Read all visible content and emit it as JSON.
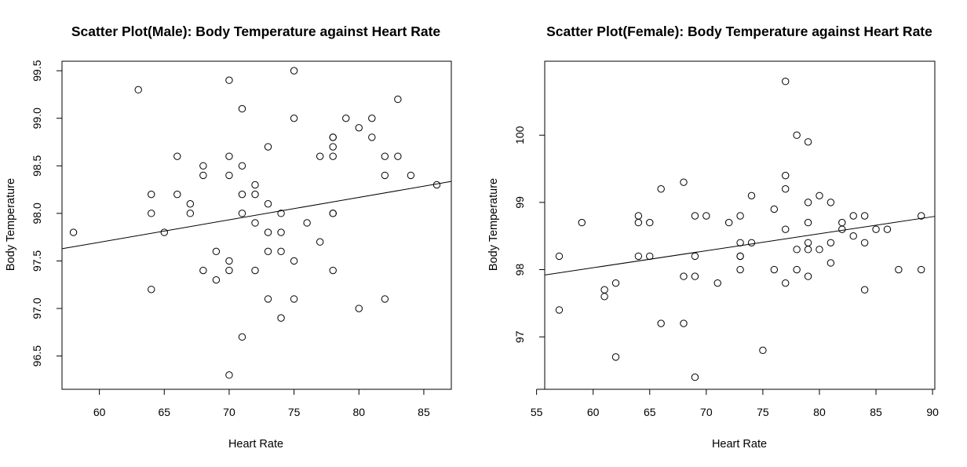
{
  "chart_data": [
    {
      "type": "scatter",
      "title": "Scatter Plot(Male): Body Temperature against Heart Rate",
      "xlabel": "Heart Rate",
      "ylabel": "Body Temperature",
      "xlim": [
        57.12,
        87.12
      ],
      "ylim": [
        96.15,
        99.6
      ],
      "xticks": [
        60,
        65,
        70,
        75,
        80,
        85
      ],
      "yticks": [
        96.5,
        97.0,
        97.5,
        98.0,
        98.5,
        99.0,
        99.5
      ],
      "ytick_labels": [
        "96.5",
        "97.0",
        "97.5",
        "98.0",
        "98.5",
        "99.0",
        "99.5"
      ],
      "grid": false,
      "legend": "none",
      "marker": "open-circle",
      "points": [
        [
          58,
          97.8
        ],
        [
          63,
          99.3
        ],
        [
          64,
          98.2
        ],
        [
          64,
          98.0
        ],
        [
          64,
          97.2
        ],
        [
          65,
          97.8
        ],
        [
          66,
          98.6
        ],
        [
          66,
          98.2
        ],
        [
          67,
          98.1
        ],
        [
          67,
          98.0
        ],
        [
          68,
          98.5
        ],
        [
          68,
          98.4
        ],
        [
          68,
          97.4
        ],
        [
          69,
          97.6
        ],
        [
          69,
          97.3
        ],
        [
          70,
          99.4
        ],
        [
          70,
          98.6
        ],
        [
          70,
          98.4
        ],
        [
          70,
          97.5
        ],
        [
          70,
          97.4
        ],
        [
          70,
          96.3
        ],
        [
          71,
          99.1
        ],
        [
          71,
          98.5
        ],
        [
          71,
          98.2
        ],
        [
          71,
          98.0
        ],
        [
          71,
          96.7
        ],
        [
          72,
          98.3
        ],
        [
          72,
          98.2
        ],
        [
          72,
          97.9
        ],
        [
          72,
          97.4
        ],
        [
          73,
          98.7
        ],
        [
          73,
          98.1
        ],
        [
          73,
          97.8
        ],
        [
          73,
          97.6
        ],
        [
          73,
          97.1
        ],
        [
          74,
          98.0
        ],
        [
          74,
          97.8
        ],
        [
          74,
          97.6
        ],
        [
          74,
          96.9
        ],
        [
          75,
          99.5
        ],
        [
          75,
          99.0
        ],
        [
          75,
          97.5
        ],
        [
          75,
          97.1
        ],
        [
          76,
          97.9
        ],
        [
          77,
          98.6
        ],
        [
          77,
          97.7
        ],
        [
          78,
          98.8
        ],
        [
          78,
          98.8
        ],
        [
          78,
          98.7
        ],
        [
          78,
          98.6
        ],
        [
          78,
          98.0
        ],
        [
          78,
          98.0
        ],
        [
          78,
          97.4
        ],
        [
          79,
          99.0
        ],
        [
          80,
          98.9
        ],
        [
          80,
          97.0
        ],
        [
          81,
          99.0
        ],
        [
          81,
          98.8
        ],
        [
          82,
          98.6
        ],
        [
          82,
          98.4
        ],
        [
          82,
          97.1
        ],
        [
          83,
          99.2
        ],
        [
          83,
          98.6
        ],
        [
          84,
          98.4
        ],
        [
          86,
          98.3
        ]
      ],
      "fit_line": {
        "intercept": 96.28,
        "slope": 0.0236
      }
    },
    {
      "type": "scatter",
      "title": "Scatter Plot(Female): Body Temperature against Heart Rate",
      "xlabel": "Heart Rate",
      "ylabel": "Body Temperature",
      "xlim": [
        55.72,
        90.2
      ],
      "ylim": [
        96.22,
        101.1
      ],
      "xticks": [
        55,
        60,
        65,
        70,
        75,
        80,
        85,
        90
      ],
      "yticks": [
        97,
        98,
        99,
        100
      ],
      "ytick_labels": [
        "97",
        "98",
        "99",
        "100"
      ],
      "grid": false,
      "legend": "none",
      "marker": "open-circle",
      "points": [
        [
          57,
          98.2
        ],
        [
          57,
          97.4
        ],
        [
          59,
          98.7
        ],
        [
          61,
          97.7
        ],
        [
          61,
          97.6
        ],
        [
          62,
          97.8
        ],
        [
          62,
          96.7
        ],
        [
          64,
          98.8
        ],
        [
          64,
          98.7
        ],
        [
          64,
          98.2
        ],
        [
          65,
          98.7
        ],
        [
          65,
          98.2
        ],
        [
          66,
          99.2
        ],
        [
          66,
          97.2
        ],
        [
          68,
          99.3
        ],
        [
          68,
          97.9
        ],
        [
          68,
          97.2
        ],
        [
          69,
          98.8
        ],
        [
          69,
          98.2
        ],
        [
          69,
          97.9
        ],
        [
          69,
          96.4
        ],
        [
          70,
          98.8
        ],
        [
          71,
          97.8
        ],
        [
          72,
          98.7
        ],
        [
          73,
          98.8
        ],
        [
          73,
          98.4
        ],
        [
          73,
          98.2
        ],
        [
          73,
          98.2
        ],
        [
          73,
          98.0
        ],
        [
          74,
          99.1
        ],
        [
          74,
          98.4
        ],
        [
          75,
          96.8
        ],
        [
          76,
          98.9
        ],
        [
          76,
          98.0
        ],
        [
          77,
          100.8
        ],
        [
          77,
          99.4
        ],
        [
          77,
          99.2
        ],
        [
          77,
          98.6
        ],
        [
          77,
          97.8
        ],
        [
          78,
          100.0
        ],
        [
          78,
          98.3
        ],
        [
          78,
          98.0
        ],
        [
          79,
          99.9
        ],
        [
          79,
          99.0
        ],
        [
          79,
          98.7
        ],
        [
          79,
          98.4
        ],
        [
          79,
          98.3
        ],
        [
          79,
          97.9
        ],
        [
          80,
          99.1
        ],
        [
          80,
          98.3
        ],
        [
          81,
          99.0
        ],
        [
          81,
          98.4
        ],
        [
          81,
          98.1
        ],
        [
          82,
          98.7
        ],
        [
          82,
          98.6
        ],
        [
          83,
          98.8
        ],
        [
          83,
          98.5
        ],
        [
          84,
          98.8
        ],
        [
          84,
          98.4
        ],
        [
          84,
          97.7
        ],
        [
          85,
          98.6
        ],
        [
          86,
          98.6
        ],
        [
          87,
          98.0
        ],
        [
          89,
          98.8
        ],
        [
          89,
          98.0
        ]
      ],
      "fit_line": {
        "intercept": 96.51,
        "slope": 0.0253
      }
    }
  ]
}
